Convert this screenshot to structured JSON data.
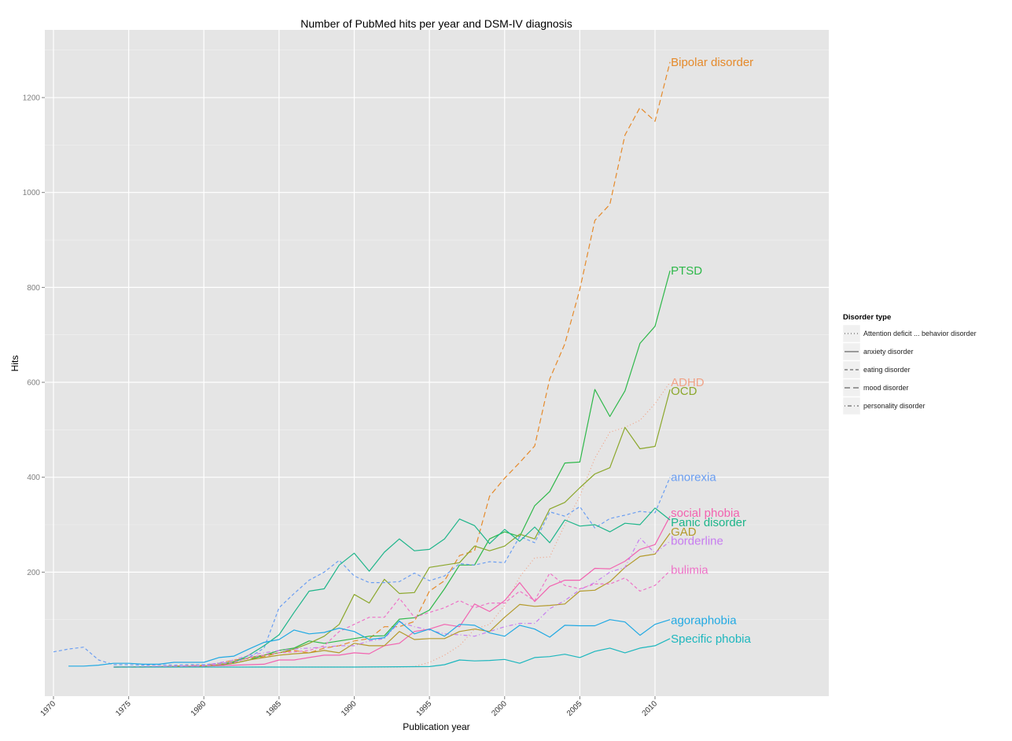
{
  "chart_data": {
    "type": "line",
    "title": "Number of PubMed hits per year and DSM-IV diagnosis",
    "xlabel": "Publication year",
    "ylabel": "Hits",
    "xlim": [
      1969.4,
      2021.5
    ],
    "ylim": [
      -62,
      1340
    ],
    "x_ticks": [
      1970,
      1975,
      1980,
      1985,
      1990,
      1995,
      2000,
      2005,
      2010
    ],
    "y_ticks": [
      200,
      400,
      600,
      800,
      1000,
      1200
    ],
    "grid": true,
    "background": "#E5E5E5",
    "legend": {
      "title": "Disorder type",
      "position": "right",
      "entries": [
        {
          "label": "Attention deficit ... behavior disorder",
          "linetype": "dotted"
        },
        {
          "label": "anxiety disorder",
          "linetype": "solid"
        },
        {
          "label": "eating disorder",
          "linetype": "dashed"
        },
        {
          "label": "mood disorder",
          "linetype": "longdash"
        },
        {
          "label": "personality disorder",
          "linetype": "dotdash"
        }
      ]
    },
    "series": [
      {
        "name": "Bipolar disorder",
        "type": "mood disorder",
        "linetype": "longdash",
        "color": "#E58A2B",
        "x": [
          1974,
          1975,
          1976,
          1977,
          1978,
          1979,
          1980,
          1981,
          1982,
          1983,
          1984,
          1985,
          1986,
          1987,
          1988,
          1989,
          1990,
          1991,
          1992,
          1993,
          1994,
          1995,
          1996,
          1997,
          1998,
          1999,
          2000,
          2001,
          2002,
          2003,
          2004,
          2005,
          2006,
          2007,
          2008,
          2009,
          2010,
          2011
        ],
        "values": [
          0,
          0,
          0,
          1,
          2,
          3,
          4,
          8,
          15,
          18,
          22,
          30,
          35,
          30,
          40,
          45,
          55,
          60,
          85,
          85,
          96,
          160,
          182,
          235,
          245,
          360,
          398,
          431,
          466,
          607,
          681,
          796,
          941,
          975,
          1121,
          1179,
          1150,
          1275
        ]
      },
      {
        "name": "PTSD",
        "type": "anxiety disorder",
        "linetype": "solid",
        "color": "#2EB84A",
        "x": [
          1980,
          1981,
          1982,
          1983,
          1984,
          1985,
          1986,
          1987,
          1988,
          1989,
          1990,
          1991,
          1992,
          1993,
          1994,
          1995,
          1996,
          1997,
          1998,
          1999,
          2000,
          2001,
          2002,
          2003,
          2004,
          2005,
          2006,
          2007,
          2008,
          2009,
          2010,
          2011
        ],
        "values": [
          2,
          4,
          8,
          15,
          25,
          35,
          40,
          55,
          50,
          55,
          60,
          65,
          66,
          101,
          104,
          120,
          165,
          215,
          215,
          270,
          285,
          275,
          340,
          370,
          430,
          432,
          585,
          528,
          582,
          682,
          718,
          835
        ]
      },
      {
        "name": "ADHD",
        "type": "Attention deficit ... behavior disorder",
        "linetype": "dotted",
        "color": "#F0A287",
        "x": [
          1974,
          1980,
          1985,
          1990,
          1993,
          1994,
          1995,
          1996,
          1997,
          1998,
          1999,
          2000,
          2001,
          2002,
          2003,
          2004,
          2005,
          2006,
          2007,
          2008,
          2009,
          2010,
          2011
        ],
        "values": [
          0,
          0,
          0,
          0,
          0,
          1,
          10,
          25,
          45,
          80,
          90,
          130,
          190,
          230,
          232,
          300,
          360,
          440,
          495,
          505,
          520,
          555,
          600
        ]
      },
      {
        "name": "OCD",
        "type": "anxiety disorder",
        "linetype": "solid",
        "color": "#8BA72B",
        "x": [
          1980,
          1981,
          1982,
          1983,
          1984,
          1985,
          1986,
          1987,
          1988,
          1989,
          1990,
          1991,
          1992,
          1993,
          1994,
          1995,
          1996,
          1997,
          1998,
          1999,
          2000,
          2001,
          2002,
          2003,
          2004,
          2005,
          2006,
          2007,
          2008,
          2009,
          2010,
          2011
        ],
        "values": [
          2,
          5,
          12,
          20,
          25,
          30,
          38,
          50,
          65,
          90,
          153,
          135,
          185,
          155,
          157,
          210,
          215,
          220,
          255,
          245,
          255,
          280,
          270,
          333,
          347,
          378,
          407,
          420,
          505,
          460,
          465,
          585
        ]
      },
      {
        "name": "anorexia",
        "type": "eating disorder",
        "linetype": "dashed",
        "color": "#6A9EF2",
        "x": [
          1970,
          1971,
          1972,
          1973,
          1974,
          1975,
          1976,
          1977,
          1978,
          1979,
          1980,
          1981,
          1982,
          1983,
          1984,
          1985,
          1986,
          1987,
          1988,
          1989,
          1990,
          1991,
          1992,
          1993,
          1994,
          1995,
          1996,
          1997,
          1998,
          1999,
          2000,
          2001,
          2002,
          2003,
          2004,
          2005,
          2006,
          2007,
          2008,
          2009,
          2010,
          2011
        ],
        "values": [
          32,
          38,
          42,
          15,
          5,
          5,
          4,
          5,
          4,
          5,
          5,
          8,
          10,
          20,
          40,
          125,
          155,
          183,
          200,
          225,
          192,
          178,
          178,
          180,
          198,
          182,
          192,
          218,
          215,
          222,
          220,
          275,
          262,
          327,
          318,
          338,
          293,
          313,
          320,
          328,
          325,
          400
        ]
      },
      {
        "name": "social phobia",
        "type": "anxiety disorder",
        "linetype": "solid",
        "color": "#F263B0",
        "x": [
          1974,
          1980,
          1982,
          1983,
          1984,
          1985,
          1986,
          1987,
          1988,
          1989,
          1990,
          1991,
          1992,
          1993,
          1994,
          1995,
          1996,
          1997,
          1998,
          1999,
          2000,
          2001,
          2002,
          2003,
          2004,
          2005,
          2006,
          2007,
          2008,
          2009,
          2010,
          2011
        ],
        "values": [
          0,
          2,
          4,
          5,
          6,
          15,
          15,
          20,
          25,
          25,
          30,
          28,
          45,
          50,
          75,
          80,
          90,
          85,
          133,
          117,
          140,
          178,
          138,
          170,
          183,
          183,
          208,
          207,
          223,
          248,
          258,
          318
        ]
      },
      {
        "name": "Panic disorder",
        "type": "anxiety disorder",
        "linetype": "solid",
        "color": "#1EB58A",
        "x": [
          1980,
          1981,
          1982,
          1983,
          1984,
          1985,
          1986,
          1987,
          1988,
          1989,
          1990,
          1991,
          1992,
          1993,
          1994,
          1995,
          1996,
          1997,
          1998,
          1999,
          2000,
          2001,
          2002,
          2003,
          2004,
          2005,
          2006,
          2007,
          2008,
          2009,
          2010,
          2011
        ],
        "values": [
          2,
          5,
          10,
          25,
          45,
          68,
          115,
          160,
          165,
          215,
          240,
          202,
          242,
          270,
          245,
          248,
          270,
          312,
          298,
          260,
          290,
          265,
          295,
          262,
          310,
          297,
          300,
          285,
          303,
          300,
          335,
          310
        ]
      },
      {
        "name": "GAD",
        "type": "anxiety disorder",
        "linetype": "solid",
        "color": "#B49A2C",
        "x": [
          1974,
          1980,
          1982,
          1983,
          1984,
          1985,
          1986,
          1987,
          1988,
          1989,
          1990,
          1991,
          1992,
          1993,
          1994,
          1995,
          1996,
          1997,
          1998,
          1999,
          2000,
          2001,
          2002,
          2003,
          2004,
          2005,
          2006,
          2007,
          2008,
          2009,
          2010,
          2011
        ],
        "values": [
          0,
          2,
          8,
          15,
          20,
          25,
          28,
          30,
          35,
          30,
          50,
          45,
          45,
          75,
          58,
          60,
          60,
          75,
          80,
          75,
          105,
          132,
          128,
          130,
          133,
          160,
          162,
          180,
          210,
          233,
          238,
          282
        ]
      },
      {
        "name": "borderline",
        "type": "personality disorder",
        "linetype": "dotdash",
        "color": "#C77CF0",
        "x": [
          1974,
          1980,
          1982,
          1983,
          1984,
          1985,
          1986,
          1987,
          1988,
          1989,
          1990,
          1991,
          1992,
          1993,
          1994,
          1995,
          1996,
          1997,
          1998,
          1999,
          2000,
          2001,
          2002,
          2003,
          2004,
          2005,
          2006,
          2007,
          2008,
          2009,
          2010,
          2011
        ],
        "values": [
          0,
          3,
          15,
          25,
          30,
          35,
          38,
          40,
          42,
          45,
          45,
          55,
          60,
          95,
          85,
          78,
          70,
          68,
          65,
          75,
          85,
          92,
          92,
          123,
          140,
          163,
          178,
          200,
          210,
          272,
          240,
          265
        ]
      },
      {
        "name": "bulimia",
        "type": "eating disorder",
        "linetype": "dashed",
        "color": "#EE74C8",
        "x": [
          1974,
          1980,
          1982,
          1983,
          1984,
          1985,
          1986,
          1987,
          1988,
          1989,
          1990,
          1991,
          1992,
          1993,
          1994,
          1995,
          1996,
          1997,
          1998,
          1999,
          2000,
          2001,
          2002,
          2003,
          2004,
          2005,
          2006,
          2007,
          2008,
          2009,
          2010,
          2011
        ],
        "values": [
          0,
          2,
          10,
          20,
          25,
          30,
          32,
          35,
          45,
          75,
          90,
          105,
          105,
          145,
          105,
          115,
          125,
          140,
          125,
          135,
          135,
          160,
          140,
          198,
          172,
          165,
          175,
          175,
          188,
          160,
          172,
          203
        ]
      },
      {
        "name": "agoraphobia",
        "type": "anxiety disorder",
        "linetype": "solid",
        "color": "#20A9E3",
        "x": [
          1971,
          1972,
          1973,
          1974,
          1975,
          1976,
          1977,
          1978,
          1979,
          1980,
          1981,
          1982,
          1983,
          1984,
          1985,
          1986,
          1987,
          1988,
          1989,
          1990,
          1991,
          1992,
          1993,
          1994,
          1995,
          1996,
          1997,
          1998,
          1999,
          2000,
          2001,
          2002,
          2003,
          2004,
          2005,
          2006,
          2007,
          2008,
          2009,
          2010,
          2011
        ],
        "values": [
          2,
          2,
          4,
          8,
          8,
          6,
          6,
          10,
          10,
          10,
          20,
          23,
          38,
          52,
          58,
          78,
          70,
          73,
          82,
          75,
          58,
          62,
          97,
          70,
          80,
          65,
          90,
          88,
          72,
          65,
          88,
          80,
          63,
          88,
          87,
          87,
          100,
          95,
          67,
          90,
          100
        ]
      },
      {
        "name": "Specific phobia",
        "type": "anxiety disorder",
        "linetype": "solid",
        "color": "#1DB7BE",
        "x": [
          1974,
          1980,
          1985,
          1990,
          1995,
          1996,
          1997,
          1998,
          1999,
          2000,
          2001,
          2002,
          2003,
          2004,
          2005,
          2006,
          2007,
          2008,
          2009,
          2010,
          2011
        ],
        "values": [
          0,
          0,
          0,
          0,
          1,
          5,
          15,
          13,
          14,
          16,
          8,
          20,
          22,
          27,
          20,
          33,
          40,
          30,
          40,
          45,
          60
        ]
      }
    ],
    "annotations": [
      {
        "text": "Bipolar disorder",
        "color": "#E58A2B",
        "x": 2011,
        "y": 1275
      },
      {
        "text": "PTSD",
        "color": "#2EB84A",
        "x": 2011,
        "y": 835
      },
      {
        "text": "ADHD",
        "color": "#F0A287",
        "x": 2011,
        "y": 600
      },
      {
        "text": "OCD",
        "color": "#8BA72B",
        "x": 2011,
        "y": 582
      },
      {
        "text": "anorexia",
        "color": "#6A9EF2",
        "x": 2011,
        "y": 400
      },
      {
        "text": "social phobia",
        "color": "#F263B0",
        "x": 2011,
        "y": 325
      },
      {
        "text": "Panic disorder",
        "color": "#1EB58A",
        "x": 2011,
        "y": 305
      },
      {
        "text": "GAD",
        "color": "#B49A2C",
        "x": 2011,
        "y": 285
      },
      {
        "text": "borderline",
        "color": "#C77CF0",
        "x": 2011,
        "y": 266
      },
      {
        "text": "bulimia",
        "color": "#EE74C8",
        "x": 2011,
        "y": 205
      },
      {
        "text": "agoraphobia",
        "color": "#20A9E3",
        "x": 2011,
        "y": 99
      },
      {
        "text": "Specific phobia",
        "color": "#1DB7BE",
        "x": 2011,
        "y": 60
      }
    ]
  }
}
